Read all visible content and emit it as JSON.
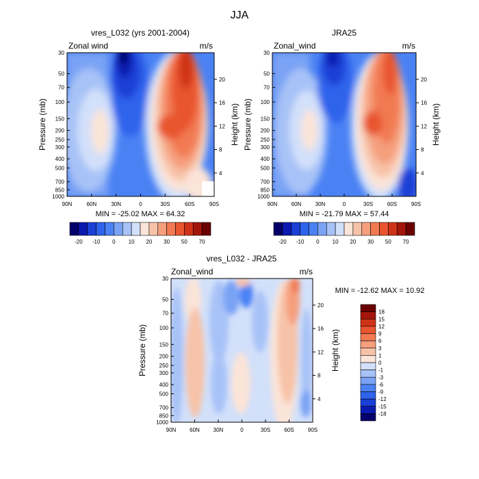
{
  "figure_title": "JJA",
  "pressure_ticks": [
    30,
    50,
    70,
    100,
    150,
    200,
    250,
    300,
    400,
    500,
    700,
    850,
    1000
  ],
  "height_ticks": [
    4,
    8,
    12,
    16,
    20
  ],
  "lat_ticks": [
    "90N",
    "60N",
    "30N",
    "0",
    "30S",
    "60S",
    "90S"
  ],
  "chart_data": [
    {
      "type": "heatmap",
      "title": "vres_L032 (yrs 2001-2004)",
      "left_label": "Zonal wind",
      "right_label": "m/s",
      "ylabel": "Pressure (mb)",
      "ylabel_right": "Height (km)",
      "minmax_text": "MIN = -25.02  MAX =  64.32",
      "x_range": [
        "90N",
        "90S"
      ],
      "y_range_mb": [
        1000,
        30
      ],
      "y_scale": "log",
      "min": -25.02,
      "max": 64.32,
      "colorbar_labels": [
        "-20",
        "-10",
        "0",
        "10",
        "20",
        "30",
        "50",
        "70"
      ],
      "colorbar_orientation": "horizontal"
    },
    {
      "type": "heatmap",
      "title": "JRA25",
      "left_label": "Zonal_wind",
      "right_label": "m/s",
      "ylabel": "Pressure (mb)",
      "ylabel_right": "Height (km)",
      "minmax_text": "MIN = -21.79  MAX =  57.44",
      "x_range": [
        "90N",
        "90S"
      ],
      "y_range_mb": [
        1000,
        30
      ],
      "y_scale": "log",
      "min": -21.79,
      "max": 57.44,
      "colorbar_labels": [
        "-20",
        "-10",
        "0",
        "10",
        "20",
        "30",
        "50",
        "70"
      ],
      "colorbar_orientation": "horizontal"
    },
    {
      "type": "heatmap",
      "title": "vres_L032 - JRA25",
      "left_label": "Zonal_wind",
      "right_label": "m/s",
      "ylabel": "Pressure (mb)",
      "ylabel_right": "Height (km)",
      "minmax_text": "MIN = -12.62  MAX =  10.92",
      "x_range": [
        "90N",
        "90S"
      ],
      "y_range_mb": [
        1000,
        30
      ],
      "y_scale": "log",
      "min": -12.62,
      "max": 10.92,
      "colorbar_labels": [
        "18",
        "15",
        "12",
        "9",
        "6",
        "3",
        "1",
        "0",
        "-1",
        "-3",
        "-6",
        "-9",
        "-12",
        "-15",
        "-18"
      ],
      "colorbar_orientation": "vertical"
    }
  ],
  "colorbar_wind_colors": [
    "#03006b",
    "#0a1ab0",
    "#1a3fd6",
    "#2f63ec",
    "#4a82f4",
    "#7aa3f5",
    "#a7c2f7",
    "#d2e0fa",
    "#fbe4d8",
    "#f7c3a8",
    "#f59f7d",
    "#f27a52",
    "#e8552f",
    "#cf3317",
    "#a3150a",
    "#6b0000"
  ],
  "colorbar_diff_colors": [
    "#6b0000",
    "#a3150a",
    "#cf3317",
    "#e8552f",
    "#f27a52",
    "#f59f7d",
    "#f7c3a8",
    "#fbe4d8",
    "#d2e0fa",
    "#a7c2f7",
    "#7aa3f5",
    "#4a82f4",
    "#2f63ec",
    "#1a3fd6",
    "#0a1ab0",
    "#03006b"
  ]
}
